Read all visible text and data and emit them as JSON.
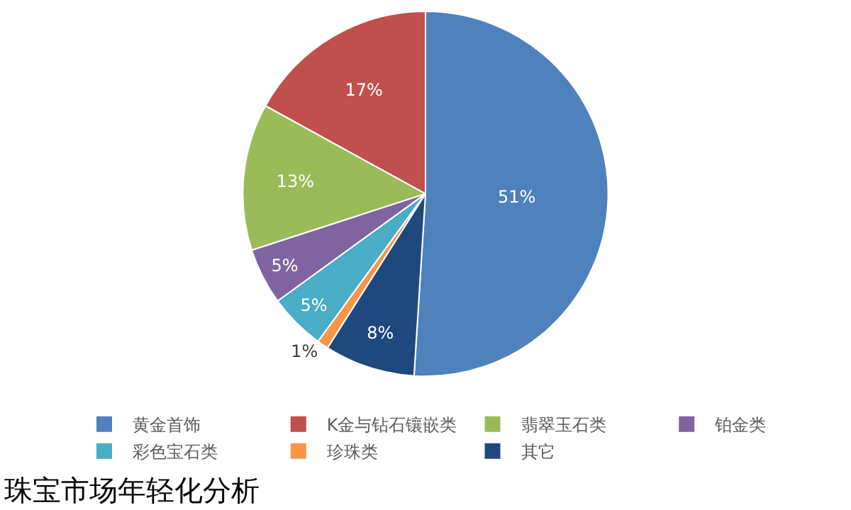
{
  "chart_data": {
    "type": "pie",
    "title": "珠宝市场年轻化分析",
    "categories": [
      "黄金首饰",
      "K金与钻石镶嵌类",
      "翡翠玉石类",
      "铂金类",
      "彩色宝石类",
      "珍珠类",
      "其它"
    ],
    "values": [
      51,
      17,
      13,
      5,
      5,
      1,
      8
    ],
    "value_labels": [
      "51%",
      "17%",
      "13%",
      "5%",
      "5%",
      "1%",
      "8%"
    ],
    "colors": [
      "#4f81bd",
      "#c0504d",
      "#9bbb59",
      "#8064a2",
      "#4bacc6",
      "#f79646",
      "#1f497d"
    ],
    "legend": "bottom"
  }
}
